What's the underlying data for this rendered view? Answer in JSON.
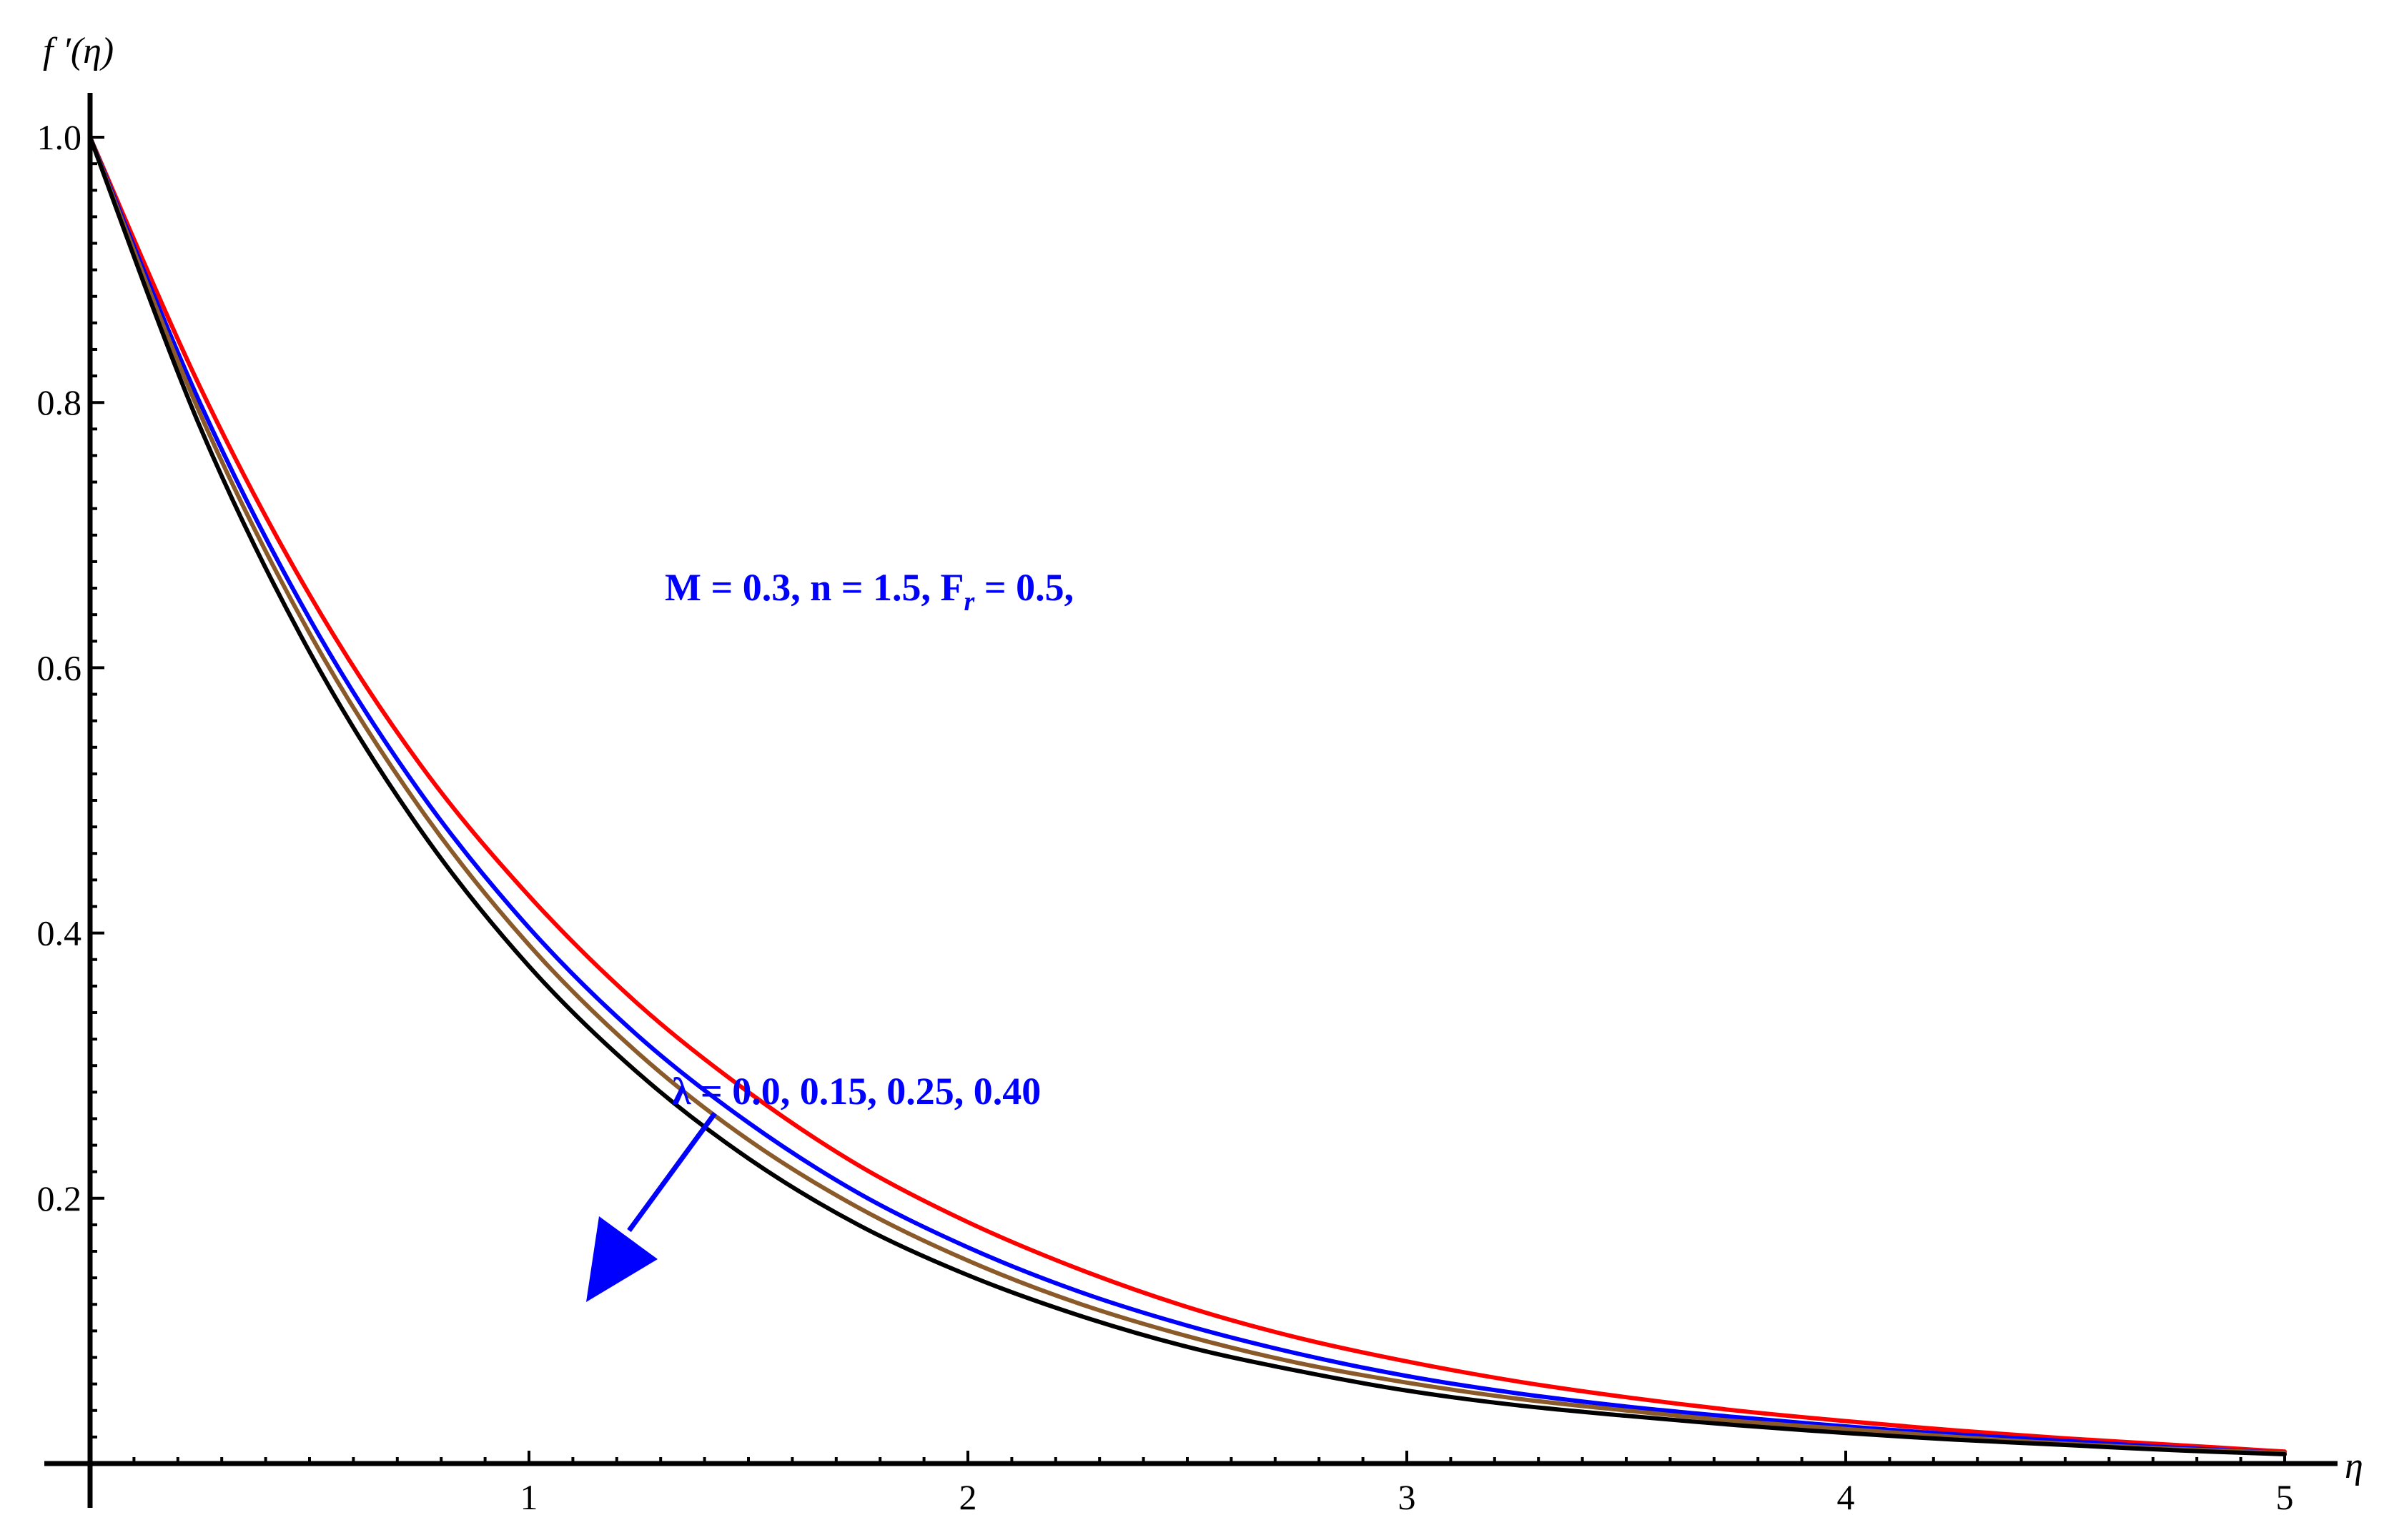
{
  "chart_data": {
    "type": "line",
    "title": "",
    "xlabel": "η",
    "ylabel": "f ′(η)",
    "xlim": [
      0,
      5
    ],
    "ylim": [
      0,
      1.0
    ],
    "x_ticks": [
      1,
      2,
      3,
      4,
      5
    ],
    "x_tick_labels": [
      "1",
      "2",
      "3",
      "4",
      "5"
    ],
    "y_ticks": [
      0.2,
      0.4,
      0.6,
      0.8,
      1.0
    ],
    "y_tick_labels": [
      "0.2",
      "0.4",
      "0.6",
      "0.8",
      "1.0"
    ],
    "grid": false,
    "x": [
      0,
      0.25,
      0.5,
      0.75,
      1.0,
      1.25,
      1.5,
      1.75,
      2.0,
      2.25,
      2.5,
      2.75,
      3.0,
      3.25,
      3.5,
      3.75,
      4.0,
      4.25,
      4.5,
      4.75,
      5.0
    ],
    "series": [
      {
        "color": "#ff0000",
        "values": [
          1.0,
          0.812,
          0.655,
          0.528,
          0.428,
          0.346,
          0.28,
          0.225,
          0.182,
          0.147,
          0.118,
          0.095,
          0.077,
          0.062,
          0.05,
          0.04,
          0.032,
          0.025,
          0.019,
          0.014,
          0.009
        ]
      },
      {
        "color": "#0000ff",
        "values": [
          1.0,
          0.8,
          0.637,
          0.507,
          0.404,
          0.322,
          0.257,
          0.204,
          0.163,
          0.13,
          0.104,
          0.083,
          0.066,
          0.053,
          0.043,
          0.035,
          0.028,
          0.022,
          0.017,
          0.012,
          0.008
        ]
      },
      {
        "color": "#8b5a2b",
        "values": [
          1.0,
          0.792,
          0.626,
          0.495,
          0.391,
          0.309,
          0.244,
          0.193,
          0.153,
          0.121,
          0.096,
          0.076,
          0.061,
          0.049,
          0.04,
          0.032,
          0.026,
          0.02,
          0.015,
          0.011,
          0.008
        ]
      },
      {
        "color": "#000000",
        "values": [
          1.0,
          0.782,
          0.612,
          0.479,
          0.375,
          0.294,
          0.23,
          0.18,
          0.142,
          0.112,
          0.088,
          0.07,
          0.055,
          0.044,
          0.036,
          0.029,
          0.023,
          0.018,
          0.014,
          0.01,
          0.007
        ]
      }
    ],
    "annotations": [
      {
        "text": "M =  0.3, n = 1.5, F",
        "subscript": "r",
        "suffix": " = 0.5,",
        "color": "#0000ff"
      },
      {
        "text": "λ = 0.0, 0.15, 0.25, 0.40",
        "color": "#0000ff"
      }
    ],
    "arrow": {
      "color": "#0000ff"
    }
  }
}
